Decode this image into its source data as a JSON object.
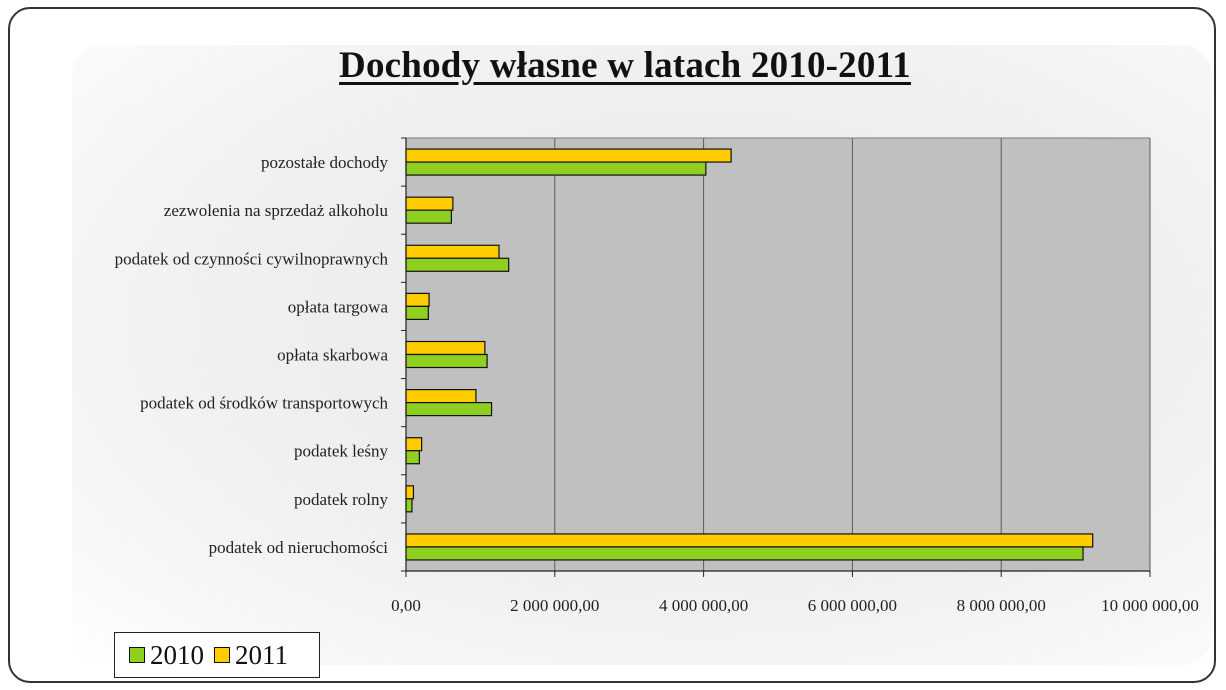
{
  "chart_data": {
    "type": "bar",
    "orientation": "horizontal",
    "title": "Dochody własne w latach 2010-2011",
    "categories": [
      "pozostałe dochody",
      "zezwolenia na sprzedaż alkoholu",
      "podatek od czynności cywilnoprawnych",
      "opłata targowa",
      "opłata skarbowa",
      "podatek od środków transportowych",
      "podatek leśny",
      "podatek rolny",
      "podatek od nieruchomości"
    ],
    "series": [
      {
        "name": "2010",
        "color": "#8fcf1f",
        "values": [
          4030000,
          610000,
          1380000,
          300000,
          1090000,
          1150000,
          180000,
          80000,
          9100000
        ]
      },
      {
        "name": "2011",
        "color": "#ffcc00",
        "values": [
          4370000,
          630000,
          1250000,
          310000,
          1060000,
          940000,
          210000,
          100000,
          9230000
        ]
      }
    ],
    "xlim": [
      0,
      10000000
    ],
    "xticks": [
      0,
      2000000,
      4000000,
      6000000,
      8000000,
      10000000
    ],
    "xtick_labels": [
      "0,00",
      "2 000 000,00",
      "4 000 000,00",
      "6 000 000,00",
      "8 000 000,00",
      "10 000 000,00"
    ],
    "grid": true,
    "plot_background": "#c0c0c0",
    "legend_position": "bottom-left"
  }
}
